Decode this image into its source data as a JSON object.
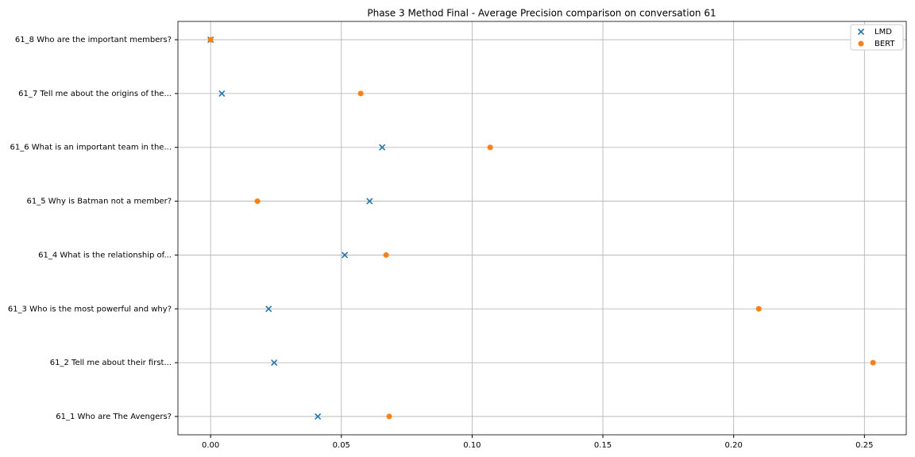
{
  "chart_data": {
    "type": "scatter",
    "title": "Phase 3 Method Final - Average Precision comparison on conversation 61",
    "categories": [
      "61_1 Who are The Avengers?",
      "61_2 Tell me about their first...",
      "61_3 Who is the most powerful and why?",
      "61_4 What is the relationship of...",
      "61_5 Why is Batman not a member?",
      "61_6 What is an important team in the...",
      "61_7 Tell me about the origins of the...",
      "61_8 Who are the important members?"
    ],
    "series": [
      {
        "name": "LMD",
        "color": "#1f77b4",
        "marker": "x",
        "values": [
          0.041,
          0.0243,
          0.0222,
          0.0513,
          0.0608,
          0.0656,
          0.0043,
          0.0
        ]
      },
      {
        "name": "BERT",
        "color": "#ff7f0e",
        "marker": "o",
        "values": [
          0.0683,
          0.2533,
          0.2096,
          0.0671,
          0.0179,
          0.1069,
          0.0574,
          0.0
        ]
      }
    ],
    "xlim": [
      -0.0125,
      0.266
    ],
    "xticks": [
      {
        "value": 0,
        "label": "0.00"
      },
      {
        "value": 0.05,
        "label": "0.05"
      },
      {
        "value": 0.1,
        "label": "0.10"
      },
      {
        "value": 0.15,
        "label": "0.15"
      },
      {
        "value": 0.2,
        "label": "0.20"
      },
      {
        "value": 0.25,
        "label": "0.25"
      }
    ],
    "grid": true,
    "legend": "upper right"
  }
}
